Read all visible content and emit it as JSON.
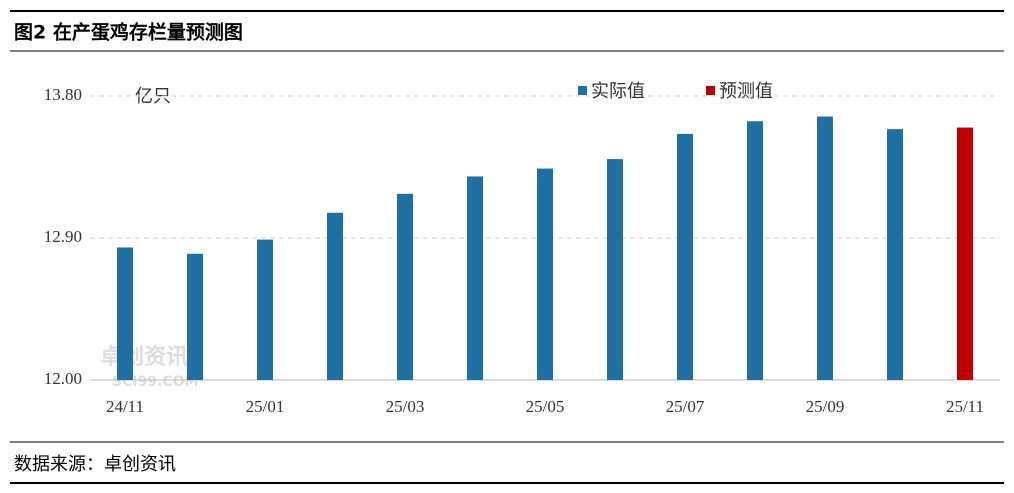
{
  "title": "图2 在产蛋鸡存栏量预测图",
  "source": "数据来源：卓创资讯",
  "watermark": {
    "name": "卓创资讯",
    "site": "SCI99.COM"
  },
  "chart_data": {
    "type": "bar",
    "unit": "亿只",
    "categories": [
      "24/11",
      null,
      "25/01",
      null,
      "25/03",
      null,
      "25/05",
      null,
      "25/07",
      null,
      "25/09",
      null,
      "25/11"
    ],
    "series": [
      {
        "name": "实际值",
        "color": "#1f6fa3",
        "values": [
          12.84,
          12.8,
          12.89,
          13.06,
          13.18,
          13.29,
          13.34,
          13.4,
          13.56,
          13.64,
          13.67,
          13.59,
          null
        ]
      },
      {
        "name": "预测值",
        "color": "#c00000",
        "values": [
          null,
          null,
          null,
          null,
          null,
          null,
          null,
          null,
          null,
          null,
          null,
          null,
          13.6
        ]
      }
    ],
    "ylim": [
      12.0,
      13.8
    ],
    "yticks": [
      {
        "value": 12.0,
        "label": "12.00"
      },
      {
        "value": 12.9,
        "label": "12.90"
      },
      {
        "value": 13.8,
        "label": "13.80"
      }
    ],
    "grid": true,
    "legend": "top-right"
  }
}
